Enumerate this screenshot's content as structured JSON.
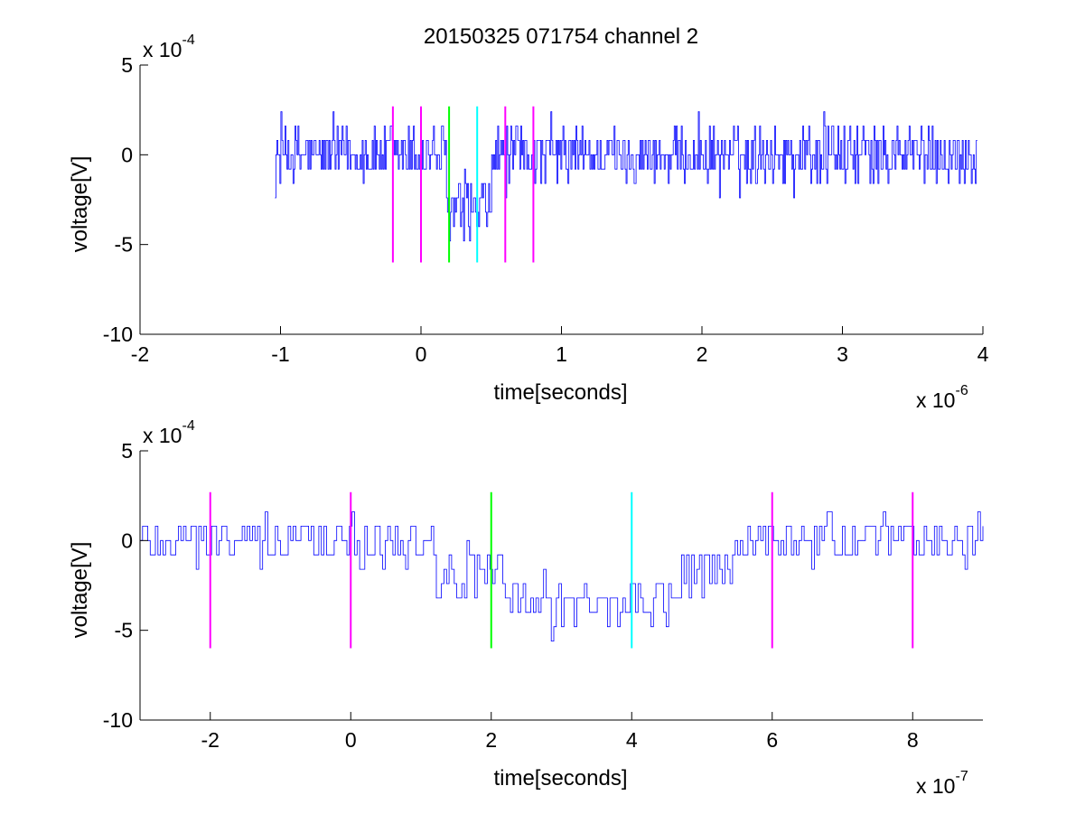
{
  "figure": {
    "title": "20150325 071754 channel 2"
  },
  "colors": {
    "trace": "#0000ff",
    "magenta": "#ff00ff",
    "green": "#00ff00",
    "cyan": "#00ffff",
    "axes": "#000000"
  },
  "chart_data": [
    {
      "type": "line",
      "title": "20150325 071754 channel 2",
      "xlabel": "time[seconds]",
      "ylabel": "voltage[V]",
      "x_multiplier": {
        "base": "x 10",
        "exponent": "-6"
      },
      "y_multiplier": {
        "base": "x 10",
        "exponent": "-4"
      },
      "xlim": [
        -2,
        4
      ],
      "ylim": [
        -10,
        5
      ],
      "x_ticks": [
        -2,
        -1,
        0,
        1,
        2,
        3,
        4
      ],
      "x_tick_labels": [
        "-2",
        "-1",
        "0",
        "1",
        "2",
        "3",
        "4"
      ],
      "y_ticks": [
        -10,
        -5,
        0,
        5
      ],
      "y_tick_labels": [
        "-10",
        "-5",
        "0",
        "5"
      ],
      "grid": false,
      "trace": {
        "color": "#0000ff",
        "x_start": -1.04,
        "x_end": 3.96,
        "segments": [
          {
            "x0": -1.04,
            "x1": 0.18,
            "mean": 0.0,
            "noise": 0.9
          },
          {
            "x0": 0.18,
            "x1": 0.5,
            "mean": -3.2,
            "noise": 0.9
          },
          {
            "x0": 0.5,
            "x1": 3.96,
            "mean": 0.0,
            "noise": 0.9
          }
        ]
      },
      "vertical_markers": [
        {
          "x": -0.2,
          "y0": -6.0,
          "y1": 2.7,
          "color": "#ff00ff"
        },
        {
          "x": 0.0,
          "y0": -6.0,
          "y1": 2.7,
          "color": "#ff00ff"
        },
        {
          "x": 0.2,
          "y0": -6.0,
          "y1": 2.7,
          "color": "#00ff00"
        },
        {
          "x": 0.4,
          "y0": -6.0,
          "y1": 2.7,
          "color": "#00ffff"
        },
        {
          "x": 0.6,
          "y0": -6.0,
          "y1": 2.7,
          "color": "#ff00ff"
        },
        {
          "x": 0.8,
          "y0": -6.0,
          "y1": 2.7,
          "color": "#ff00ff"
        }
      ]
    },
    {
      "type": "line",
      "title": "",
      "xlabel": "time[seconds]",
      "ylabel": "voltage[V]",
      "x_multiplier": {
        "base": "x 10",
        "exponent": "-7"
      },
      "y_multiplier": {
        "base": "x 10",
        "exponent": "-4"
      },
      "xlim": [
        -3,
        9
      ],
      "ylim": [
        -10,
        5
      ],
      "x_ticks": [
        -2,
        0,
        2,
        4,
        6,
        8
      ],
      "x_tick_labels": [
        "-2",
        "0",
        "2",
        "4",
        "6",
        "8"
      ],
      "y_ticks": [
        -10,
        -5,
        0,
        5
      ],
      "y_tick_labels": [
        "-10",
        "-5",
        "0",
        "5"
      ],
      "grid": false,
      "trace": {
        "color": "#0000ff",
        "x_start": -3,
        "x_end": 9,
        "segments": [
          {
            "x0": -3,
            "x1": 1.2,
            "mean": 0.0,
            "noise": 0.8
          },
          {
            "x0": 1.2,
            "x1": 2.2,
            "mean": -2.0,
            "noise": 0.8
          },
          {
            "x0": 2.2,
            "x1": 4.6,
            "mean": -3.5,
            "noise": 0.8
          },
          {
            "x0": 4.6,
            "x1": 5.4,
            "mean": -2.0,
            "noise": 0.8
          },
          {
            "x0": 5.4,
            "x1": 9,
            "mean": 0.0,
            "noise": 0.8
          }
        ]
      },
      "vertical_markers": [
        {
          "x": -2,
          "y0": -6.0,
          "y1": 2.7,
          "color": "#ff00ff"
        },
        {
          "x": 0,
          "y0": -6.0,
          "y1": 2.7,
          "color": "#ff00ff"
        },
        {
          "x": 2,
          "y0": -6.0,
          "y1": 2.7,
          "color": "#00ff00"
        },
        {
          "x": 4,
          "y0": -6.0,
          "y1": 2.7,
          "color": "#00ffff"
        },
        {
          "x": 6,
          "y0": -6.0,
          "y1": 2.7,
          "color": "#ff00ff"
        },
        {
          "x": 8,
          "y0": -6.0,
          "y1": 2.7,
          "color": "#ff00ff"
        }
      ]
    }
  ]
}
